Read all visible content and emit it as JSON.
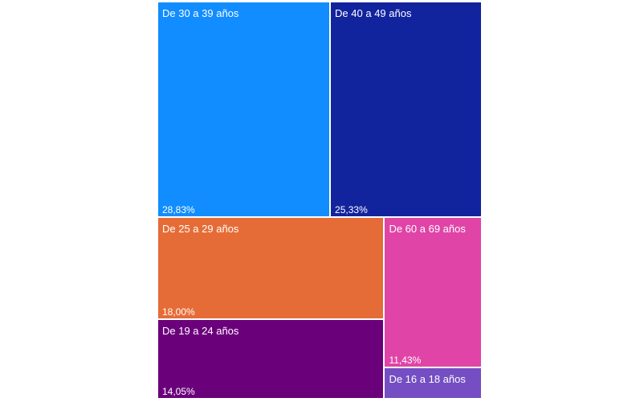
{
  "chart_data": {
    "type": "treemap",
    "items": [
      {
        "label": "De 30 a 39 años",
        "value": 28.83,
        "value_label": "28,83%",
        "color": "#118DFF"
      },
      {
        "label": "De 40 a 49 años",
        "value": 25.33,
        "value_label": "25,33%",
        "color": "#12239E"
      },
      {
        "label": "De 25 a 29 años",
        "value": 18.0,
        "value_label": "18,00%",
        "color": "#E66C37"
      },
      {
        "label": "De 19 a 24 años",
        "value": 14.05,
        "value_label": "14,05%",
        "color": "#6B007B"
      },
      {
        "label": "De 60 a 69 años",
        "value": 11.43,
        "value_label": "11,43%",
        "color": "#E044A7"
      },
      {
        "label": "De 16 a 18 años",
        "value": 2.36,
        "value_label": "",
        "color": "#744EC2"
      }
    ]
  }
}
